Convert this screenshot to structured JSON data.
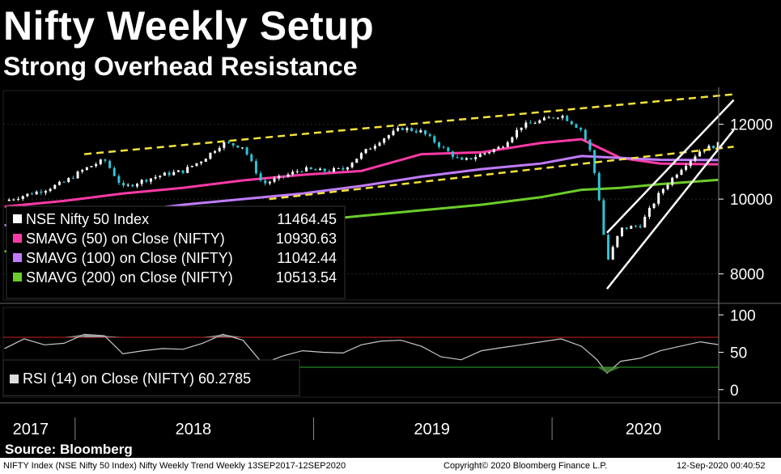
{
  "title": "Nifty Weekly Setup",
  "subtitle": "Strong Overhead Resistance",
  "source": "Source: Bloomberg",
  "footer": {
    "left": "NIFTY Index (NSE Nifty 50 Index) Nifty Weekly Trend  Weekly 13SEP2017-12SEP2020",
    "center": "Copyright© 2020 Bloomberg Finance L.P.",
    "right": "12-Sep-2020 00:40:52"
  },
  "colors": {
    "price": "#ffffff",
    "up_candle": "#ffffff",
    "down_candle": "#2ec4d6",
    "sma50": "#ff3aa6",
    "sma100": "#c07cff",
    "sma200": "#6ccc2a",
    "trendline": "#f5e33a",
    "channel": "#ffffff",
    "rsi": "#c8c8c8",
    "rsi_upper": "#cc2222",
    "rsi_lower": "#2ea82e"
  },
  "chart_data": [
    {
      "type": "line",
      "title": "",
      "x_label": "",
      "y_label": "",
      "x_ticks": [
        "2017",
        "2018",
        "2019",
        "2020"
      ],
      "y_ticks": [
        8000,
        10000,
        12000
      ],
      "y_range": [
        7300,
        12900
      ],
      "x_range": [
        "2017-09-13",
        "2020-09-12"
      ],
      "grid": true,
      "legend_position": "bottom-left",
      "legend": [
        {
          "label": "NSE Nifty 50 Index",
          "value": "11464.45",
          "color": "#ffffff"
        },
        {
          "label": "SMAVG (50)  on Close (NIFTY)",
          "value": "10930.63",
          "color": "#ff3aa6"
        },
        {
          "label": "SMAVG (100)  on Close (NIFTY)",
          "value": "11042.44",
          "color": "#c07cff"
        },
        {
          "label": "SMAVG (200)  on Close (NIFTY)",
          "value": "10513.54",
          "color": "#6ccc2a"
        }
      ],
      "series": [
        {
          "name": "NSE Nifty 50 Index",
          "x": [
            "2017-09-15",
            "2017-10-15",
            "2017-11-15",
            "2017-12-15",
            "2018-01-15",
            "2018-02-15",
            "2018-03-15",
            "2018-04-15",
            "2018-05-15",
            "2018-06-15",
            "2018-07-15",
            "2018-08-15",
            "2018-09-15",
            "2018-10-15",
            "2018-11-15",
            "2018-12-15",
            "2019-01-15",
            "2019-02-15",
            "2019-03-15",
            "2019-04-15",
            "2019-05-15",
            "2019-06-15",
            "2019-07-15",
            "2019-08-15",
            "2019-09-15",
            "2019-10-15",
            "2019-11-15",
            "2019-12-15",
            "2020-01-15",
            "2020-02-15",
            "2020-03-01",
            "2020-03-15",
            "2020-03-25",
            "2020-04-15",
            "2020-05-15",
            "2020-06-15",
            "2020-07-15",
            "2020-08-15",
            "2020-09-11"
          ],
          "values": [
            9950,
            10100,
            10250,
            10450,
            10800,
            11050,
            10300,
            10500,
            10650,
            10750,
            11050,
            11500,
            11400,
            10400,
            10600,
            10800,
            10750,
            10800,
            11200,
            11600,
            11900,
            11800,
            11400,
            11000,
            11200,
            11400,
            11950,
            12100,
            12250,
            11850,
            11200,
            9800,
            8300,
            9200,
            9300,
            10200,
            10800,
            11300,
            11464.45
          ]
        },
        {
          "name": "SMAVG (50)  on Close (NIFTY)",
          "x": [
            "2017-09-15",
            "2017-12-15",
            "2018-03-15",
            "2018-06-15",
            "2018-09-15",
            "2018-12-15",
            "2019-03-15",
            "2019-06-15",
            "2019-09-15",
            "2019-12-15",
            "2020-02-15",
            "2020-04-15",
            "2020-06-15",
            "2020-09-11"
          ],
          "values": [
            9800,
            9950,
            10150,
            10300,
            10500,
            10650,
            10750,
            11200,
            11250,
            11500,
            11600,
            11100,
            10950,
            10930.63
          ]
        },
        {
          "name": "SMAVG (100)  on Close (NIFTY)",
          "x": [
            "2017-09-15",
            "2017-12-15",
            "2018-03-15",
            "2018-06-15",
            "2018-09-15",
            "2018-12-15",
            "2019-03-15",
            "2019-06-15",
            "2019-09-15",
            "2019-12-15",
            "2020-02-15",
            "2020-04-15",
            "2020-06-15",
            "2020-09-11"
          ],
          "values": [
            9300,
            9450,
            9650,
            9850,
            10000,
            10150,
            10350,
            10600,
            10800,
            10950,
            11150,
            11100,
            11050,
            11042.44
          ]
        },
        {
          "name": "SMAVG (200)  on Close (NIFTY)",
          "x": [
            "2017-09-15",
            "2017-12-15",
            "2018-03-15",
            "2018-06-15",
            "2018-09-15",
            "2018-12-15",
            "2019-03-15",
            "2019-06-15",
            "2019-09-15",
            "2019-12-15",
            "2020-02-15",
            "2020-04-15",
            "2020-06-15",
            "2020-09-11"
          ],
          "values": [
            8600,
            8750,
            8900,
            9050,
            9200,
            9400,
            9550,
            9700,
            9850,
            10050,
            10250,
            10300,
            10400,
            10513.54
          ]
        },
        {
          "name": "upper-resistance",
          "x": [
            "2018-01-15",
            "2020-10-05"
          ],
          "values": [
            11200,
            12800
          ]
        },
        {
          "name": "lower-support",
          "x": [
            "2018-10-25",
            "2020-10-05"
          ],
          "values": [
            10000,
            11400
          ]
        },
        {
          "name": "channel-upper",
          "x": [
            "2020-03-25",
            "2020-10-05"
          ],
          "values": [
            9100,
            12650
          ]
        },
        {
          "name": "channel-lower",
          "x": [
            "2020-03-25",
            "2020-10-05"
          ],
          "values": [
            7600,
            11850
          ]
        }
      ]
    },
    {
      "type": "line",
      "title": "",
      "y_ticks": [
        0,
        50,
        100
      ],
      "y_range": [
        -10,
        110
      ],
      "x_range": [
        "2017-09-13",
        "2020-09-12"
      ],
      "legend_position": "bottom-left",
      "legend": [
        {
          "label": "RSI (14)  on Close (NIFTY)",
          "value": "60.2785",
          "color": "#dddddd"
        }
      ],
      "reference_lines": [
        70,
        30
      ],
      "series": [
        {
          "name": "RSI (14)  on Close (NIFTY)",
          "x": [
            "2017-09-15",
            "2017-10-15",
            "2017-11-15",
            "2017-12-15",
            "2018-01-15",
            "2018-02-15",
            "2018-03-15",
            "2018-04-15",
            "2018-05-15",
            "2018-06-15",
            "2018-07-15",
            "2018-08-15",
            "2018-09-15",
            "2018-10-15",
            "2018-11-15",
            "2018-12-15",
            "2019-01-15",
            "2019-02-15",
            "2019-03-15",
            "2019-04-15",
            "2019-05-15",
            "2019-06-15",
            "2019-07-15",
            "2019-08-15",
            "2019-09-15",
            "2019-10-15",
            "2019-11-15",
            "2019-12-15",
            "2020-01-15",
            "2020-02-15",
            "2020-03-10",
            "2020-03-25",
            "2020-04-15",
            "2020-05-15",
            "2020-06-15",
            "2020-07-15",
            "2020-08-15",
            "2020-09-11"
          ],
          "values": [
            55,
            68,
            60,
            62,
            74,
            72,
            48,
            52,
            55,
            54,
            62,
            74,
            66,
            35,
            45,
            52,
            50,
            49,
            60,
            65,
            66,
            58,
            44,
            40,
            52,
            56,
            60,
            64,
            68,
            58,
            40,
            22,
            38,
            42,
            52,
            58,
            64,
            60.2785
          ]
        }
      ]
    }
  ]
}
